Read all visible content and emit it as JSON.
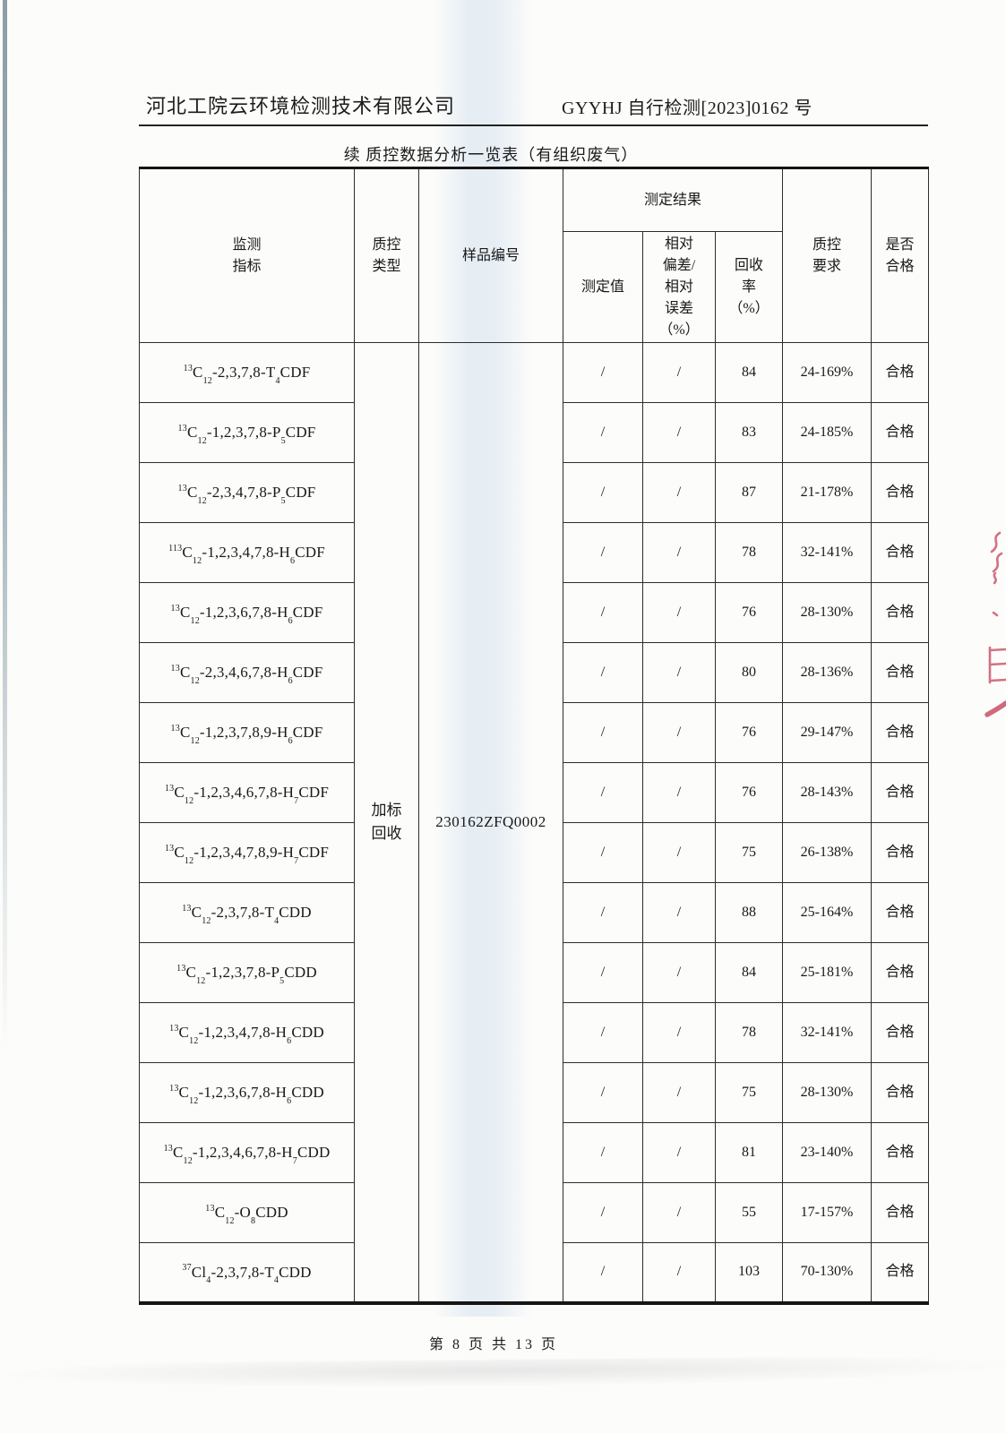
{
  "header": {
    "company": "河北工院云环境检测技术有限公司",
    "report_no": "GYYHJ 自行检测[2023]0162 号"
  },
  "title": "续 质控数据分析一览表（有组织废气）",
  "table": {
    "col_headers": {
      "indicator": "监测\n指标",
      "qc_type": "质控\n类型",
      "sample_no": "样品编号",
      "result_group": "测定结果",
      "measured": "测定值",
      "rel_dev": "相对\n偏差/\n相对\n误差\n（%）",
      "recovery": "回收\n率\n（%）",
      "qc_req": "质控\n要求",
      "qualified": "是否\n合格"
    },
    "merged": {
      "qc_type": "加标\n回收",
      "sample_no": "230162ZFQ0002"
    },
    "rows": [
      {
        "indicator": "^{13}C_{12}-2,3,7,8-T_{4}CDF",
        "measured": "/",
        "rel_dev": "/",
        "recovery": "84",
        "qc_req": "24-169%",
        "qualified": "合格"
      },
      {
        "indicator": "^{13}C_{12}-1,2,3,7,8-P_{5}CDF",
        "measured": "/",
        "rel_dev": "/",
        "recovery": "83",
        "qc_req": "24-185%",
        "qualified": "合格"
      },
      {
        "indicator": "^{13}C_{12}-2,3,4,7,8-P_{5}CDF",
        "measured": "/",
        "rel_dev": "/",
        "recovery": "87",
        "qc_req": "21-178%",
        "qualified": "合格"
      },
      {
        "indicator": "^{113}C_{12}-1,2,3,4,7,8-H_{6}CDF",
        "measured": "/",
        "rel_dev": "/",
        "recovery": "78",
        "qc_req": "32-141%",
        "qualified": "合格"
      },
      {
        "indicator": "^{13}C_{12}-1,2,3,6,7,8-H_{6}CDF",
        "measured": "/",
        "rel_dev": "/",
        "recovery": "76",
        "qc_req": "28-130%",
        "qualified": "合格"
      },
      {
        "indicator": "^{13}C_{12}-2,3,4,6,7,8-H_{6}CDF",
        "measured": "/",
        "rel_dev": "/",
        "recovery": "80",
        "qc_req": "28-136%",
        "qualified": "合格"
      },
      {
        "indicator": "^{13}C_{12}-1,2,3,7,8,9-H_{6}CDF",
        "measured": "/",
        "rel_dev": "/",
        "recovery": "76",
        "qc_req": "29-147%",
        "qualified": "合格"
      },
      {
        "indicator": "^{13}C_{12}-1,2,3,4,6,7,8-H_{7}CDF",
        "measured": "/",
        "rel_dev": "/",
        "recovery": "76",
        "qc_req": "28-143%",
        "qualified": "合格"
      },
      {
        "indicator": "^{13}C_{12}-1,2,3,4,7,8,9-H_{7}CDF",
        "measured": "/",
        "rel_dev": "/",
        "recovery": "75",
        "qc_req": "26-138%",
        "qualified": "合格"
      },
      {
        "indicator": "^{13}C_{12}-2,3,7,8-T_{4}CDD",
        "measured": "/",
        "rel_dev": "/",
        "recovery": "88",
        "qc_req": "25-164%",
        "qualified": "合格"
      },
      {
        "indicator": "^{13}C_{12}-1,2,3,7,8-P_{5}CDD",
        "measured": "/",
        "rel_dev": "/",
        "recovery": "84",
        "qc_req": "25-181%",
        "qualified": "合格"
      },
      {
        "indicator": "^{13}C_{12}-1,2,3,4,7,8-H_{6}CDD",
        "measured": "/",
        "rel_dev": "/",
        "recovery": "78",
        "qc_req": "32-141%",
        "qualified": "合格"
      },
      {
        "indicator": "^{13}C_{12}-1,2,3,6,7,8-H_{6}CDD",
        "measured": "/",
        "rel_dev": "/",
        "recovery": "75",
        "qc_req": "28-130%",
        "qualified": "合格"
      },
      {
        "indicator": "^{13}C_{12}-1,2,3,4,6,7,8-H_{7}CDD",
        "measured": "/",
        "rel_dev": "/",
        "recovery": "81",
        "qc_req": "23-140%",
        "qualified": "合格"
      },
      {
        "indicator": "^{13}C_{12}-O_{8}CDD",
        "measured": "/",
        "rel_dev": "/",
        "recovery": "55",
        "qc_req": "17-157%",
        "qualified": "合格"
      },
      {
        "indicator": "^{37}Cl_{4}-2,3,7,8-T_{4}CDD",
        "measured": "/",
        "rel_dev": "/",
        "recovery": "103",
        "qc_req": "70-130%",
        "qualified": "合格"
      }
    ]
  },
  "footer": {
    "page_label": "第 8 页 共 13 页"
  },
  "colors": {
    "ink": "#1c1c1c",
    "table_line": "#2c2c2c",
    "red_annotation": "#c84f66",
    "paper": "#fcfcfa",
    "scan_band_blue": "#adc8e6"
  }
}
